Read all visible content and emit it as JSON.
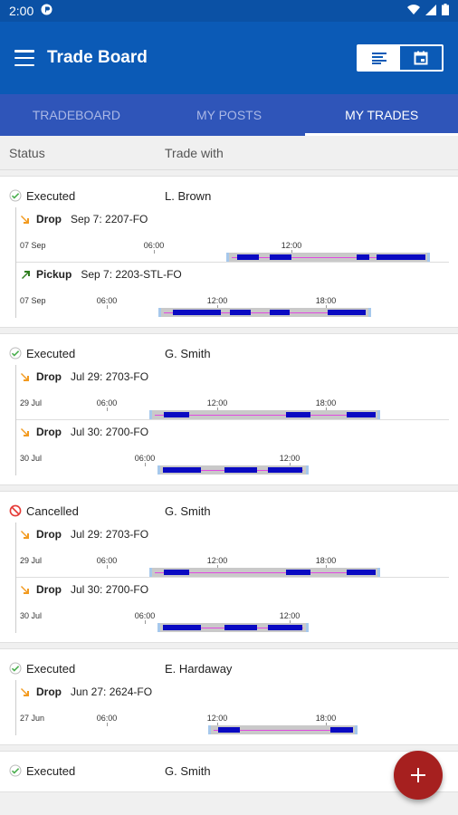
{
  "status_bar": {
    "time": "2:00"
  },
  "header": {
    "title": "Trade Board"
  },
  "tabs": [
    {
      "label": "TRADEBOARD",
      "active": false
    },
    {
      "label": "MY POSTS",
      "active": false
    },
    {
      "label": "MY TRADES",
      "active": true
    }
  ],
  "columns": {
    "status": "Status",
    "trade_with": "Trade with"
  },
  "trades": [
    {
      "status": "Executed",
      "status_kind": "executed",
      "partner": "L. Brown",
      "legs": [
        {
          "type": "Drop",
          "detail": "Sep 7: 2207-FO",
          "date_label": "07 Sep",
          "ticks": [
            "06:00",
            "12:00"
          ]
        },
        {
          "type": "Pickup",
          "detail": "Sep 7: 2203-STL-FO",
          "date_label": "07 Sep",
          "ticks": [
            "06:00",
            "12:00",
            "18:00"
          ]
        }
      ]
    },
    {
      "status": "Executed",
      "status_kind": "executed",
      "partner": "G. Smith",
      "legs": [
        {
          "type": "Drop",
          "detail": "Jul 29: 2703-FO",
          "date_label": "29 Jul",
          "ticks": [
            "06:00",
            "12:00",
            "18:00"
          ]
        },
        {
          "type": "Drop",
          "detail": "Jul 30: 2700-FO",
          "date_label": "30 Jul",
          "ticks": [
            "06:00",
            "12:00"
          ]
        }
      ]
    },
    {
      "status": "Cancelled",
      "status_kind": "cancelled",
      "partner": "G. Smith",
      "legs": [
        {
          "type": "Drop",
          "detail": "Jul 29: 2703-FO",
          "date_label": "29 Jul",
          "ticks": [
            "06:00",
            "12:00",
            "18:00"
          ]
        },
        {
          "type": "Drop",
          "detail": "Jul 30: 2700-FO",
          "date_label": "30 Jul",
          "ticks": [
            "06:00",
            "12:00"
          ]
        }
      ]
    },
    {
      "status": "Executed",
      "status_kind": "executed",
      "partner": "E. Hardaway",
      "legs": [
        {
          "type": "Drop",
          "detail": "Jun 27: 2624-FO",
          "date_label": "27 Jun",
          "ticks": [
            "06:00",
            "12:00",
            "18:00"
          ]
        }
      ]
    },
    {
      "status": "Executed",
      "status_kind": "executed",
      "partner": "G. Smith",
      "legs": []
    }
  ],
  "colors": {
    "primary": "#0b5ab6",
    "tab_bar": "#2f55b9",
    "fab": "#a6201f",
    "drop_icon": "#f29a1f",
    "pickup_icon": "#2e7d1e",
    "executed_icon": "#4caf50",
    "cancelled_icon": "#e53935",
    "segment": "#0a0ac2"
  }
}
